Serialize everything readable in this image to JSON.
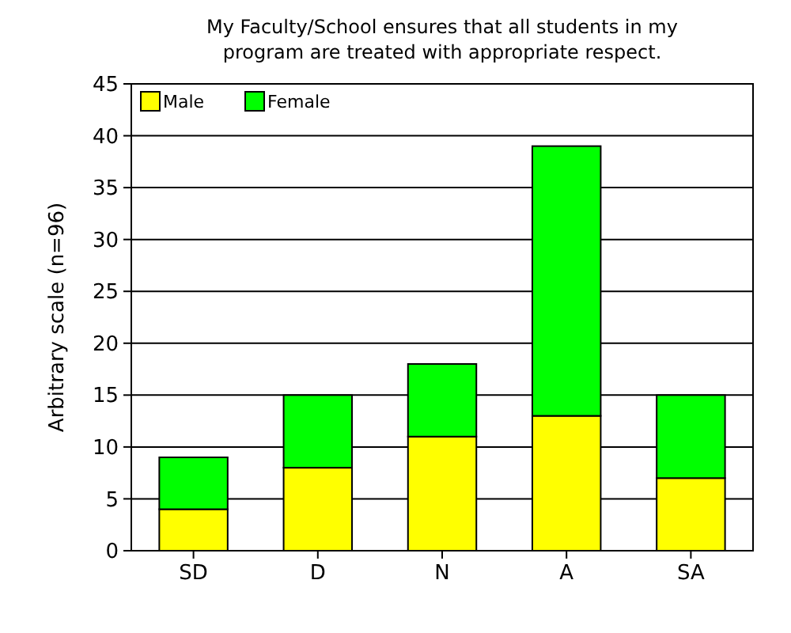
{
  "chart_data": {
    "type": "bar",
    "title": "My Faculty/School ensures that all students in my program are treated with appropriate respect.",
    "ylabel": "Arbitrary scale (n=96)",
    "categories": [
      "SD",
      "D",
      "N",
      "A",
      "SA"
    ],
    "stacked": true,
    "series": [
      {
        "name": "Male",
        "color": "#ffff00",
        "values": [
          4,
          8,
          11,
          13,
          7
        ]
      },
      {
        "name": "Female",
        "color": "#00ff00",
        "values": [
          5,
          7,
          7,
          26,
          8
        ]
      }
    ],
    "ylim": [
      0,
      45
    ],
    "yticks": [
      0,
      5,
      10,
      15,
      20,
      25,
      30,
      35,
      40,
      45
    ],
    "grid": "y",
    "legend": "top left"
  }
}
